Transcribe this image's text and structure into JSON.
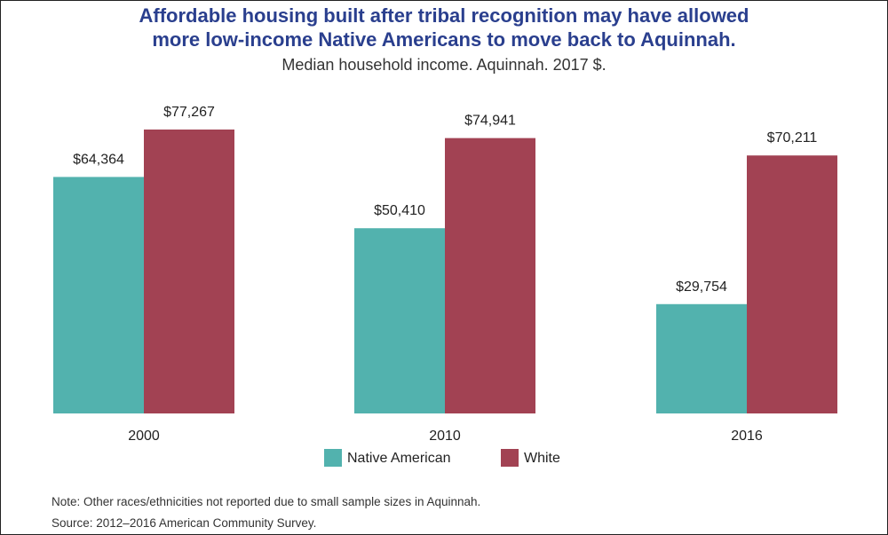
{
  "chart_data": {
    "type": "bar",
    "title_line1": "Affordable housing built after tribal recognition may have allowed",
    "title_line2": "more low-income Native Americans to move back to Aquinnah.",
    "subtitle": "Median household income. Aquinnah. 2017 $.",
    "categories": [
      "2000",
      "2010",
      "2016"
    ],
    "series": [
      {
        "name": "Native American",
        "color": "#52b2ae",
        "values": [
          64364,
          50410,
          29754
        ],
        "labels": [
          "$64,364",
          "$50,410",
          "$29,754"
        ]
      },
      {
        "name": "White",
        "color": "#a24253",
        "values": [
          77267,
          74941,
          70211
        ],
        "labels": [
          "$77,267",
          "$74,941",
          "$70,211"
        ]
      }
    ],
    "ylim": [
      0,
      77267
    ],
    "grid": false,
    "legend": "bottom-center",
    "xlabel": "",
    "ylabel": ""
  },
  "footer": {
    "note": "Note: Other races/ethnicities not reported due to small sample sizes in Aquinnah.",
    "source": "Source: 2012–2016 American Community Survey."
  }
}
